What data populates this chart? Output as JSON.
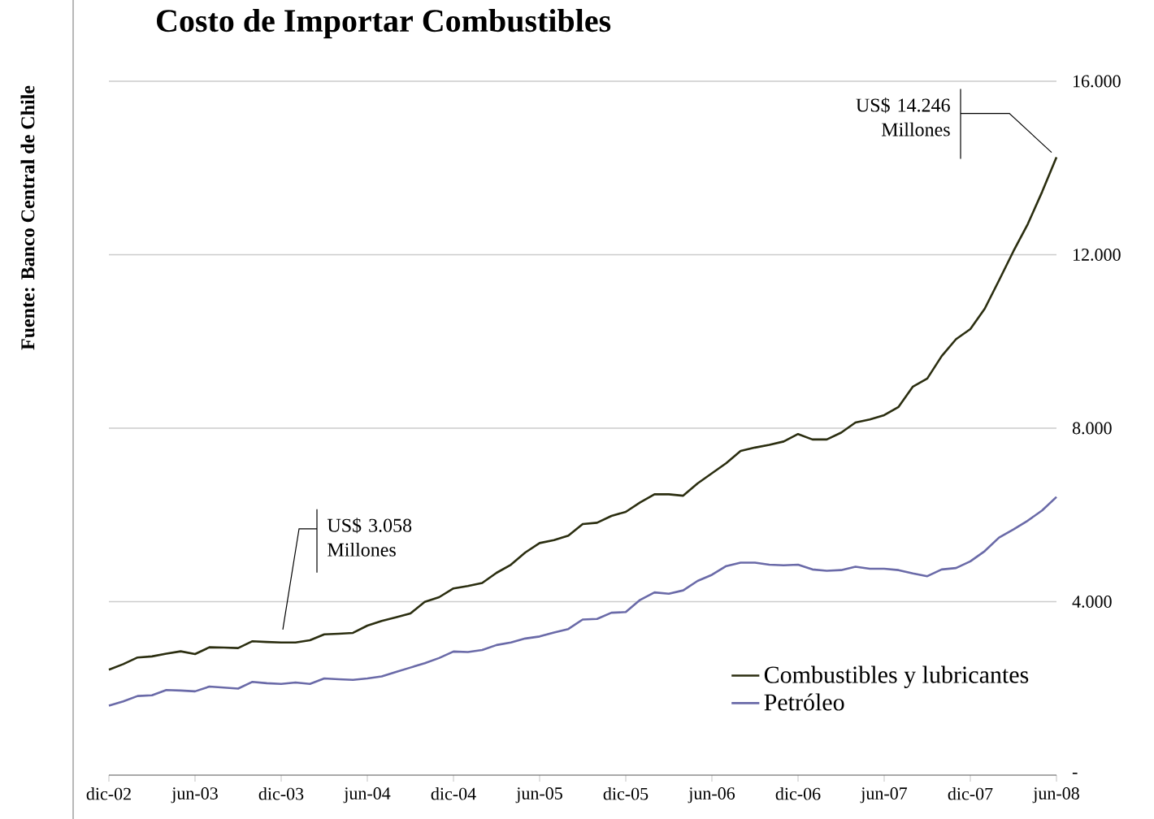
{
  "chart_data": {
    "type": "line",
    "title": "Costo de Importar Combustibles",
    "x": [
      "2002-12",
      "2003-01",
      "2003-02",
      "2003-03",
      "2003-04",
      "2003-05",
      "2003-06",
      "2003-07",
      "2003-08",
      "2003-09",
      "2003-10",
      "2003-11",
      "2003-12",
      "2004-01",
      "2004-02",
      "2004-03",
      "2004-04",
      "2004-05",
      "2004-06",
      "2004-07",
      "2004-08",
      "2004-09",
      "2004-10",
      "2004-11",
      "2004-12",
      "2005-01",
      "2005-02",
      "2005-03",
      "2005-04",
      "2005-05",
      "2005-06",
      "2005-07",
      "2005-08",
      "2005-09",
      "2005-10",
      "2005-11",
      "2005-12",
      "2006-01",
      "2006-02",
      "2006-03",
      "2006-04",
      "2006-05",
      "2006-06",
      "2006-07",
      "2006-08",
      "2006-09",
      "2006-10",
      "2006-11",
      "2006-12",
      "2007-01",
      "2007-02",
      "2007-03",
      "2007-04",
      "2007-05",
      "2007-06",
      "2007-07",
      "2007-08",
      "2007-09",
      "2007-10",
      "2007-11",
      "2007-12",
      "2008-01",
      "2008-02",
      "2008-03",
      "2008-04",
      "2008-05",
      "2008-06"
    ],
    "series": [
      {
        "name": "Combustibles y lubricantes",
        "color": "#2b2e10",
        "values": [
          2432,
          2560,
          2713,
          2738,
          2800,
          2855,
          2791,
          2948,
          2940,
          2930,
          3088,
          3070,
          3058,
          3060,
          3110,
          3245,
          3260,
          3280,
          3447,
          3556,
          3640,
          3728,
          3994,
          4103,
          4305,
          4360,
          4430,
          4665,
          4852,
          5133,
          5351,
          5420,
          5522,
          5789,
          5820,
          5977,
          6070,
          6288,
          6475,
          6475,
          6443,
          6726,
          6960,
          7194,
          7475,
          7553,
          7615,
          7693,
          7865,
          7740,
          7740,
          7896,
          8131,
          8200,
          8300,
          8490,
          8959,
          9146,
          9660,
          10051,
          10286,
          10754,
          11410,
          12080,
          12706,
          13450,
          14246
        ]
      },
      {
        "name": "Petróleo",
        "color": "#6a6aa8",
        "values": [
          1604,
          1700,
          1824,
          1840,
          1963,
          1950,
          1932,
          2042,
          2020,
          1995,
          2151,
          2120,
          2104,
          2135,
          2104,
          2229,
          2210,
          2198,
          2230,
          2276,
          2380,
          2480,
          2580,
          2700,
          2850,
          2838,
          2885,
          3000,
          3057,
          3150,
          3197,
          3290,
          3369,
          3588,
          3603,
          3744,
          3760,
          4041,
          4213,
          4182,
          4260,
          4478,
          4619,
          4821,
          4899,
          4899,
          4852,
          4837,
          4852,
          4743,
          4712,
          4728,
          4806,
          4759,
          4759,
          4728,
          4650,
          4587,
          4743,
          4775,
          4930,
          5165,
          5478,
          5665,
          5868,
          6102,
          6414
        ]
      }
    ],
    "xlim": [
      "2002-12",
      "2008-06"
    ],
    "xticks": [
      {
        "value": "2002-12",
        "label": "dic-02"
      },
      {
        "value": "2003-06",
        "label": "jun-03"
      },
      {
        "value": "2003-12",
        "label": "dic-03"
      },
      {
        "value": "2004-06",
        "label": "jun-04"
      },
      {
        "value": "2004-12",
        "label": "dic-04"
      },
      {
        "value": "2005-06",
        "label": "jun-05"
      },
      {
        "value": "2005-12",
        "label": "dic-05"
      },
      {
        "value": "2006-06",
        "label": "jun-06"
      },
      {
        "value": "2006-12",
        "label": "dic-06"
      },
      {
        "value": "2007-06",
        "label": "jun-07"
      },
      {
        "value": "2007-12",
        "label": "dic-07"
      },
      {
        "value": "2008-06",
        "label": "jun-08"
      }
    ],
    "ylim": [
      0,
      16000
    ],
    "yticks": [
      {
        "value": 0,
        "label": "-"
      },
      {
        "value": 4000,
        "label": "4.000"
      },
      {
        "value": 8000,
        "label": "8.000"
      },
      {
        "value": 12000,
        "label": "12.000"
      },
      {
        "value": 16000,
        "label": "16.000"
      }
    ],
    "grid": "y",
    "legend": "bottom right",
    "marker": "none",
    "line_style": "solid",
    "annotations": [
      {
        "text": "US$ 14.246 Millones",
        "x": "2008-06",
        "y": 14246
      },
      {
        "text": "US$ 3.058 Millones",
        "x": "2003-12",
        "y": 3058
      },
      "Fuente: Banco Central de Chile"
    ]
  }
}
